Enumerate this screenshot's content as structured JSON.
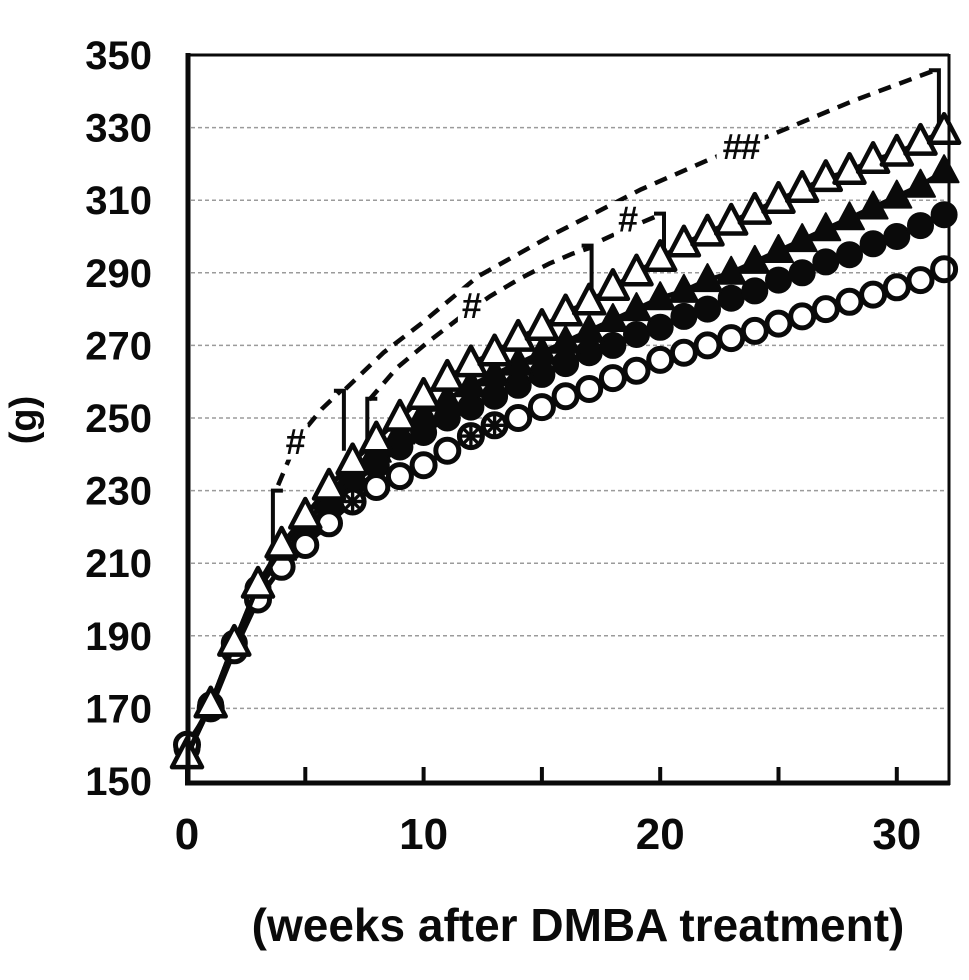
{
  "figure": {
    "background": "#ffffff",
    "ink_color": "#0a0a0a",
    "grid_color": "#9b9b9b"
  },
  "chart_data": {
    "type": "line",
    "title": "",
    "xlabel": "(weeks after DMBA treatment)",
    "ylabel": "(g)",
    "xlim": [
      0,
      32
    ],
    "ylim": [
      150,
      350
    ],
    "grid": "horizontal-dotted",
    "legend": "none",
    "x_axis": {
      "label": "(weeks after DMBA treatment)",
      "minor_tick_values": [
        0,
        5,
        10,
        15,
        20,
        25,
        30
      ],
      "labeled_ticks": [
        0,
        10,
        20,
        30
      ]
    },
    "y_axis": {
      "label": "(g)",
      "tick_values": [
        350,
        330,
        310,
        290,
        270,
        250,
        230,
        210,
        190,
        170,
        150
      ],
      "gridline_values": [
        330,
        310,
        290,
        270,
        250,
        230,
        210,
        190,
        170
      ]
    },
    "x": [
      0,
      1,
      2,
      3,
      4,
      5,
      6,
      7,
      8,
      9,
      10,
      11,
      12,
      13,
      14,
      15,
      16,
      17,
      18,
      19,
      20,
      21,
      22,
      23,
      24,
      25,
      26,
      27,
      28,
      29,
      30,
      31,
      32
    ],
    "series": [
      {
        "name": "filled-circle",
        "marker": "circle-filled",
        "values": [
          159,
          171,
          188,
          203,
          212,
          219,
          226,
          232,
          237,
          242,
          246,
          250,
          253,
          256,
          259,
          262,
          265,
          268,
          270,
          273,
          275,
          278,
          280,
          283,
          285,
          288,
          290,
          293,
          295,
          298,
          300,
          303,
          306
        ]
      },
      {
        "name": "open-circle",
        "marker": "circle-open",
        "asterisk_weeks": [
          7,
          12,
          13
        ],
        "values": [
          160,
          170,
          186,
          200,
          209,
          215,
          221,
          227,
          231,
          234,
          237,
          241,
          245,
          248,
          250,
          253,
          256,
          258,
          261,
          263,
          266,
          268,
          270,
          272,
          274,
          276,
          278,
          280,
          282,
          284,
          286,
          288,
          291
        ]
      },
      {
        "name": "filled-triangle",
        "marker": "triangle-filled",
        "values": [
          157,
          171,
          188,
          204,
          214,
          221,
          228,
          235,
          241,
          246,
          251,
          255,
          259,
          262,
          265,
          268,
          271,
          274,
          277,
          280,
          283,
          285,
          288,
          290,
          293,
          296,
          299,
          302,
          305,
          308,
          311,
          314,
          318
        ]
      },
      {
        "name": "open-triangle",
        "marker": "triangle-open",
        "values": [
          157,
          171,
          188,
          204,
          215,
          223,
          231,
          238,
          244,
          250,
          256,
          261,
          265,
          268,
          272,
          275,
          279,
          282,
          286,
          290,
          294,
          298,
          301,
          304,
          307,
          310,
          313,
          316,
          318,
          321,
          323,
          326,
          329
        ]
      }
    ],
    "annotations": {
      "significance_curves": [
        {
          "id": "A",
          "label": "#",
          "label_at": {
            "w": 4.55,
            "g": 243.5
          },
          "points": [
            [
              3.85,
              231.5
            ],
            [
              4.4,
              240
            ],
            [
              5.0,
              247
            ],
            [
              5.7,
              252.5
            ],
            [
              6.5,
              257.5
            ]
          ]
        },
        {
          "id": "B",
          "label": "#",
          "label_at": {
            "w": 12.0,
            "g": 281
          },
          "points": [
            [
              7.7,
              255
            ],
            [
              8.9,
              264
            ],
            [
              10.2,
              271
            ],
            [
              11.5,
              277.5
            ],
            [
              12.8,
              283.5
            ],
            [
              14.1,
              288.5
            ],
            [
              15.3,
              292.5
            ],
            [
              16.3,
              295.3
            ],
            [
              17.1,
              297
            ]
          ]
        },
        {
          "id": "C",
          "label": "#",
          "label_at": {
            "w": 18.6,
            "g": 304.8
          },
          "points": [
            [
              17.55,
              299
            ],
            [
              18.3,
              301.3
            ],
            [
              19.2,
              303.8
            ],
            [
              20.1,
              306.3
            ]
          ]
        },
        {
          "id": "D",
          "label": "##",
          "label_at": {
            "w": 23.4,
            "g": 324.8
          },
          "points": [
            [
              6.7,
              258
            ],
            [
              8.3,
              268
            ],
            [
              9.9,
              276
            ],
            [
              12.3,
              289
            ],
            [
              15.6,
              301
            ],
            [
              19.2,
              313
            ],
            [
              22.0,
              321
            ],
            [
              24.9,
              328.5
            ],
            [
              28.2,
              337.5
            ],
            [
              31.5,
              345.5
            ]
          ]
        }
      ],
      "brackets": [
        {
          "w": 3.63,
          "g_top": 230.0,
          "g_bottom": 214.0,
          "foot": "right"
        },
        {
          "w": 6.63,
          "g_top": 257.5,
          "g_bottom": 241.0,
          "foot": "left"
        },
        {
          "w": 7.62,
          "g_top": 255.3,
          "g_bottom": 241.0,
          "foot": "right"
        },
        {
          "w": 17.1,
          "g_top": 297.5,
          "g_bottom": 284.0,
          "foot": "left"
        },
        {
          "w": 20.16,
          "g_top": 306.3,
          "g_bottom": 291.0,
          "foot": "left"
        },
        {
          "w": 31.78,
          "g_top": 345.8,
          "g_bottom": 326.5,
          "foot": "left"
        }
      ]
    }
  }
}
